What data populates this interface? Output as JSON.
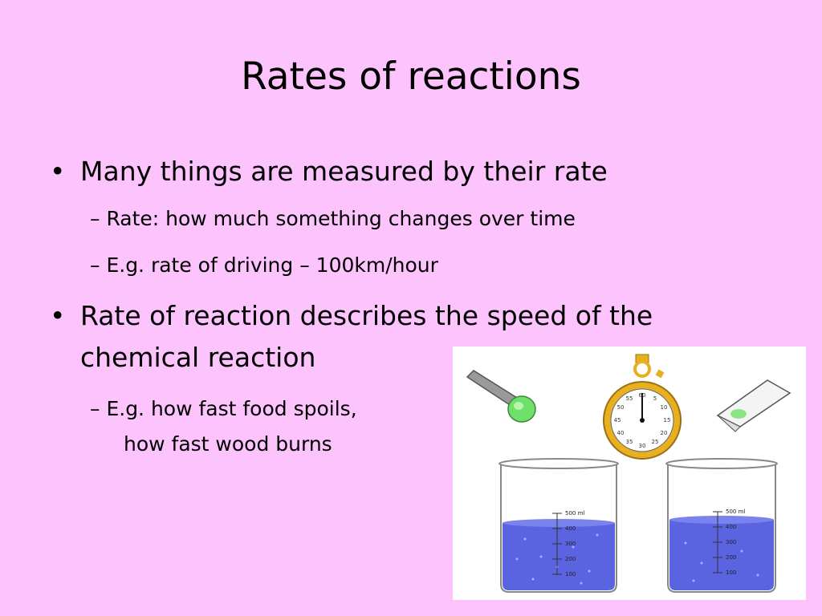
{
  "slide": {
    "title": "Rates of reactions",
    "bullets": [
      {
        "marker": "•",
        "text": "Many things are measured by their rate",
        "subs": [
          "– Rate: how much something changes over time",
          "– E.g. rate of driving – 100km/hour"
        ]
      },
      {
        "marker": "•",
        "text_line1": "Rate of reaction describes the speed of the",
        "text_line2": "chemical reaction",
        "subs": [
          "– E.g. how fast food spoils,",
          "how fast wood burns"
        ]
      }
    ],
    "illustration": {
      "stopwatch_numbers": [
        "60",
        "5",
        "10",
        "15",
        "20",
        "25",
        "30",
        "35",
        "40",
        "45",
        "50",
        "55"
      ],
      "beaker_labels": [
        "500 ml",
        "400",
        "300",
        "200",
        "100"
      ],
      "colors": {
        "background": "#fcc3fc",
        "liquid": "#5a63e0",
        "stopwatch_gold": "#e8b020",
        "tablet_green": "#6fe06a"
      }
    }
  }
}
